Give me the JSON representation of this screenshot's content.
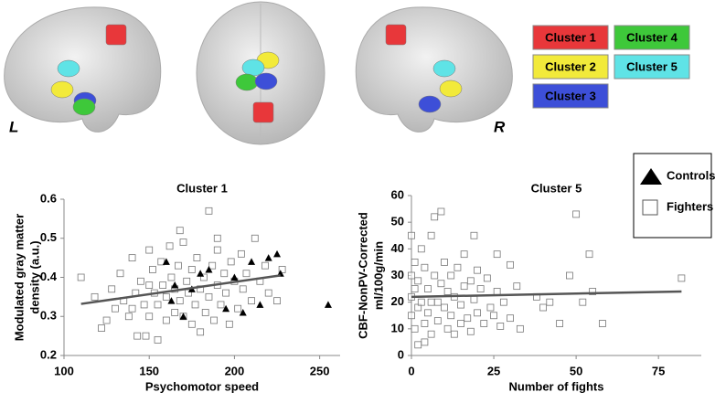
{
  "brain_panel": {
    "hemisphere_labels": [
      "L",
      "R"
    ],
    "clusters": [
      {
        "name": "Cluster 1",
        "color": "#e8373a"
      },
      {
        "name": "Cluster 2",
        "color": "#f2ea3a"
      },
      {
        "name": "Cluster 3",
        "color": "#3d4fd8"
      },
      {
        "name": "Cluster 4",
        "color": "#3ec83a"
      },
      {
        "name": "Cluster 5",
        "color": "#5fe3e6"
      }
    ]
  },
  "chart_data": [
    {
      "type": "scatter",
      "title": "Cluster 1",
      "x_label": "Psychomotor speed",
      "y_label": [
        "Modulated gray matter",
        "density (a.u.)"
      ],
      "xlim": [
        100,
        262
      ],
      "xticks": [
        100,
        150,
        200,
        250
      ],
      "ylim": [
        0.2,
        0.6
      ],
      "yticks": [
        0.2,
        0.3,
        0.4,
        0.5,
        0.6
      ],
      "series": [
        {
          "name": "Controls",
          "marker": "triangle",
          "color": "#000000",
          "x": [
            160,
            165,
            170,
            175,
            180,
            195,
            200,
            205,
            210,
            215,
            220,
            225,
            227,
            255,
            163,
            185
          ],
          "values": [
            0.44,
            0.38,
            0.3,
            0.37,
            0.41,
            0.32,
            0.4,
            0.31,
            0.44,
            0.33,
            0.45,
            0.46,
            0.41,
            0.33,
            0.34,
            0.42
          ]
        },
        {
          "name": "Fighters",
          "marker": "square",
          "color": "#777777",
          "x": [
            110,
            118,
            122,
            125,
            128,
            130,
            133,
            135,
            138,
            140,
            142,
            143,
            145,
            147,
            148,
            150,
            150,
            152,
            153,
            155,
            155,
            157,
            158,
            160,
            160,
            162,
            163,
            165,
            165,
            167,
            168,
            170,
            170,
            172,
            173,
            175,
            175,
            177,
            178,
            180,
            180,
            182,
            183,
            185,
            185,
            187,
            188,
            190,
            190,
            192,
            194,
            195,
            197,
            198,
            200,
            202,
            204,
            205,
            207,
            210,
            212,
            215,
            218,
            220,
            225,
            228,
            168,
            150,
            140,
            190
          ],
          "values": [
            0.4,
            0.35,
            0.27,
            0.29,
            0.37,
            0.32,
            0.41,
            0.34,
            0.3,
            0.45,
            0.36,
            0.25,
            0.39,
            0.33,
            0.25,
            0.47,
            0.3,
            0.42,
            0.36,
            0.24,
            0.33,
            0.44,
            0.38,
            0.29,
            0.35,
            0.48,
            0.4,
            0.31,
            0.37,
            0.43,
            0.34,
            0.49,
            0.3,
            0.39,
            0.36,
            0.28,
            0.42,
            0.33,
            0.45,
            0.37,
            0.26,
            0.4,
            0.31,
            0.57,
            0.35,
            0.43,
            0.29,
            0.38,
            0.47,
            0.33,
            0.41,
            0.36,
            0.28,
            0.44,
            0.39,
            0.32,
            0.46,
            0.37,
            0.41,
            0.34,
            0.5,
            0.39,
            0.43,
            0.36,
            0.34,
            0.42,
            0.52,
            0.38,
            0.32,
            0.5
          ]
        }
      ],
      "trendline": {
        "color": "#555555",
        "x": [
          110,
          227
        ],
        "values": [
          0.332,
          0.405
        ]
      }
    },
    {
      "type": "scatter",
      "title": "Cluster 5",
      "x_label": "Number of fights",
      "y_label": [
        "CBF-NonPV-Corrected",
        "ml/100g/min"
      ],
      "xlim": [
        0,
        88
      ],
      "xticks": [
        0,
        25,
        50,
        75
      ],
      "ylim": [
        0,
        60
      ],
      "yticks": [
        0,
        10,
        20,
        30,
        40,
        50,
        60
      ],
      "series": [
        {
          "marker": "square",
          "color": "#777777",
          "x": [
            0,
            0,
            0,
            0,
            1,
            1,
            1,
            2,
            2,
            3,
            3,
            4,
            4,
            5,
            5,
            6,
            6,
            7,
            7,
            8,
            8,
            9,
            9,
            10,
            10,
            11,
            11,
            12,
            12,
            13,
            13,
            14,
            15,
            15,
            16,
            16,
            17,
            18,
            18,
            19,
            19,
            20,
            20,
            21,
            22,
            23,
            24,
            25,
            26,
            26,
            27,
            28,
            30,
            30,
            32,
            33,
            38,
            40,
            42,
            45,
            48,
            50,
            52,
            54,
            55,
            58,
            82,
            4,
            6,
            2
          ],
          "values": [
            45,
            30,
            22,
            15,
            35,
            25,
            10,
            28,
            18,
            40,
            20,
            12,
            33,
            25,
            16,
            8,
            45,
            30,
            52,
            20,
            13,
            54,
            27,
            18,
            35,
            10,
            24,
            30,
            15,
            22,
            8,
            33,
            19,
            12,
            38,
            26,
            14,
            28,
            9,
            45,
            21,
            32,
            16,
            25,
            12,
            29,
            18,
            15,
            38,
            24,
            11,
            20,
            34,
            14,
            26,
            10,
            22,
            18,
            20,
            12,
            30,
            53,
            20,
            38,
            24,
            12,
            29,
            5,
            20,
            4
          ]
        }
      ],
      "trendline": {
        "color": "#555555",
        "x": [
          0,
          82
        ],
        "values": [
          22,
          24
        ]
      }
    }
  ]
}
